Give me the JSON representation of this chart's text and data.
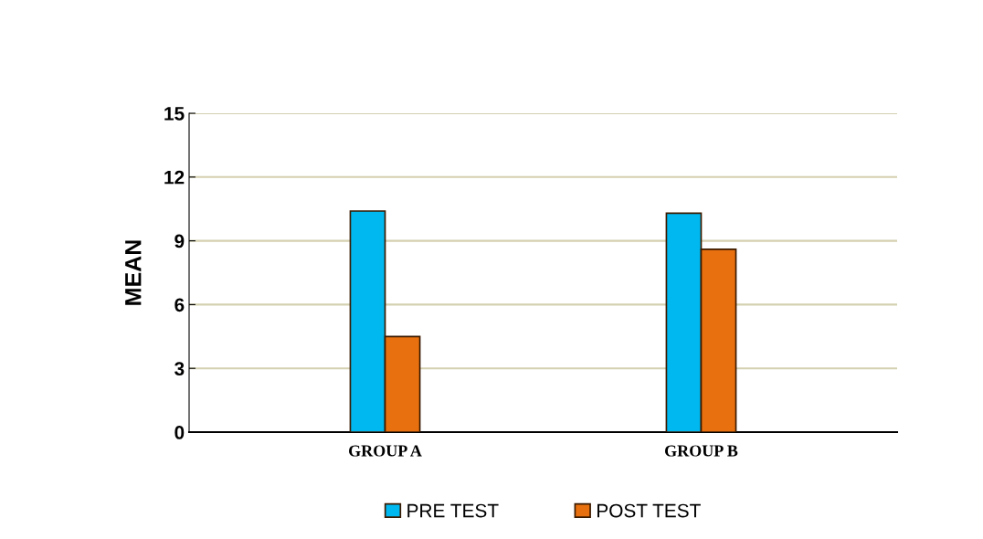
{
  "chart_data": {
    "type": "bar",
    "ylabel": "MEAN",
    "categories": [
      "GROUP A",
      "GROUP B"
    ],
    "series": [
      {
        "name": "PRE TEST",
        "color": "#00b8f0",
        "values": [
          10.4,
          10.3
        ]
      },
      {
        "name": "POST TEST",
        "color": "#e8700e",
        "values": [
          4.5,
          8.6
        ]
      }
    ],
    "ylim": [
      0,
      15
    ],
    "yticks": [
      0,
      3,
      6,
      9,
      12,
      15
    ],
    "grid": "y",
    "legend": "bottom"
  }
}
